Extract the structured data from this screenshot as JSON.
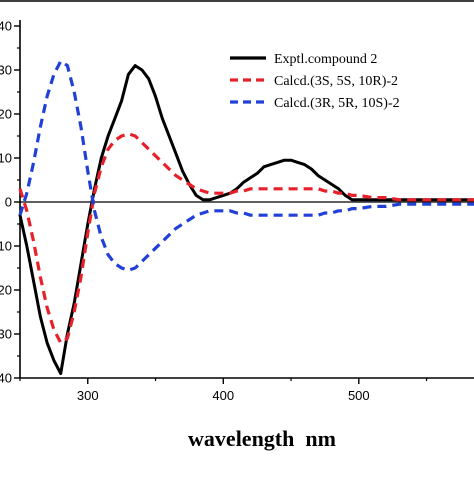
{
  "chart_data": {
    "type": "line",
    "xlabel": "wavelength  nm",
    "ylabel": "",
    "xlim": [
      250,
      585
    ],
    "ylim": [
      -40,
      40
    ],
    "x_ticks": [
      300,
      400,
      500
    ],
    "x_tick_labels": [
      "300",
      "400",
      "500"
    ],
    "y_ticks": [
      -40,
      -30,
      -20,
      -10,
      0,
      10,
      20,
      30,
      40
    ],
    "y_tick_labels": [
      "40",
      "30",
      "20",
      "10",
      "0",
      "10",
      "20",
      "30",
      "40"
    ],
    "zero_line": true,
    "grid": false,
    "legend_position": "top-right",
    "series": [
      {
        "name": "Exptl.compound 2",
        "color": "#000000",
        "dash": "solid",
        "x": [
          250,
          255,
          260,
          265,
          270,
          275,
          280,
          285,
          290,
          295,
          300,
          305,
          310,
          315,
          320,
          325,
          330,
          335,
          340,
          345,
          350,
          355,
          360,
          365,
          370,
          375,
          380,
          385,
          390,
          395,
          400,
          405,
          410,
          415,
          420,
          425,
          430,
          435,
          440,
          445,
          450,
          455,
          460,
          465,
          470,
          475,
          480,
          485,
          490,
          495,
          500,
          510,
          520,
          530,
          540,
          550,
          560,
          570,
          580,
          585
        ],
        "y": [
          -3,
          -10,
          -18,
          -26,
          -32,
          -36,
          -39,
          -30,
          -23,
          -14,
          -5,
          3,
          10,
          15,
          19,
          23,
          29,
          31,
          30,
          28,
          24,
          19,
          15,
          11,
          7,
          4,
          1.5,
          0.5,
          0.5,
          1,
          1.5,
          2,
          3,
          4.5,
          5.5,
          6.5,
          8,
          8.5,
          9,
          9.5,
          9.5,
          9,
          8.5,
          7.5,
          6,
          5,
          4,
          3,
          1.5,
          0.5,
          0.5,
          0.5,
          0.5,
          0.5,
          0.5,
          0.5,
          0.5,
          0.5,
          0.5,
          0.5
        ]
      },
      {
        "name": "Calcd.(3S, 5S, 10R)-2",
        "color": "#e8202a",
        "dash": "dashed",
        "x": [
          250,
          255,
          260,
          265,
          270,
          275,
          280,
          285,
          290,
          295,
          300,
          305,
          310,
          315,
          320,
          325,
          330,
          335,
          340,
          345,
          350,
          355,
          360,
          365,
          370,
          375,
          380,
          385,
          390,
          395,
          400,
          405,
          410,
          415,
          420,
          425,
          430,
          435,
          440,
          445,
          450,
          455,
          460,
          465,
          470,
          475,
          480,
          485,
          490,
          495,
          500,
          510,
          520,
          530,
          540,
          550,
          560,
          570,
          580,
          585
        ],
        "y": [
          3,
          -2,
          -9,
          -17,
          -24,
          -29,
          -32,
          -31,
          -25,
          -17,
          -7,
          2,
          8,
          12,
          14,
          15,
          15.5,
          15,
          13.5,
          12,
          10.5,
          9,
          7.5,
          6,
          5,
          4,
          3,
          2.5,
          2,
          2,
          2,
          2,
          2.5,
          2.5,
          3,
          3,
          3,
          3,
          3,
          3,
          3,
          3,
          3,
          3,
          3,
          2.5,
          2.5,
          2,
          2,
          1.5,
          1.5,
          1,
          1,
          0.5,
          0.5,
          0.5,
          0.5,
          0.5,
          0.5,
          0.5
        ]
      },
      {
        "name": "Calcd.(3R, 5R, 10S)-2",
        "color": "#2040d8",
        "dash": "dashed",
        "x": [
          250,
          255,
          260,
          265,
          270,
          275,
          280,
          285,
          290,
          295,
          300,
          305,
          310,
          315,
          320,
          325,
          330,
          335,
          340,
          345,
          350,
          355,
          360,
          365,
          370,
          375,
          380,
          385,
          390,
          395,
          400,
          405,
          410,
          415,
          420,
          425,
          430,
          435,
          440,
          445,
          450,
          455,
          460,
          465,
          470,
          475,
          480,
          485,
          490,
          495,
          500,
          510,
          520,
          530,
          540,
          550,
          560,
          570,
          580,
          585
        ],
        "y": [
          -3,
          2,
          9,
          17,
          24,
          29,
          32,
          31,
          25,
          17,
          7,
          -2,
          -8,
          -12,
          -14,
          -15,
          -15.5,
          -15,
          -13.5,
          -12,
          -10.5,
          -9,
          -7.5,
          -6,
          -5,
          -4,
          -3,
          -2.5,
          -2,
          -2,
          -2,
          -2,
          -2.5,
          -2.5,
          -3,
          -3,
          -3,
          -3,
          -3,
          -3,
          -3,
          -3,
          -3,
          -3,
          -3,
          -2.5,
          -2.5,
          -2,
          -2,
          -1.5,
          -1.5,
          -1,
          -1,
          -0.5,
          -0.5,
          -0.5,
          -0.5,
          -0.5,
          -0.5,
          -0.5
        ]
      }
    ]
  }
}
